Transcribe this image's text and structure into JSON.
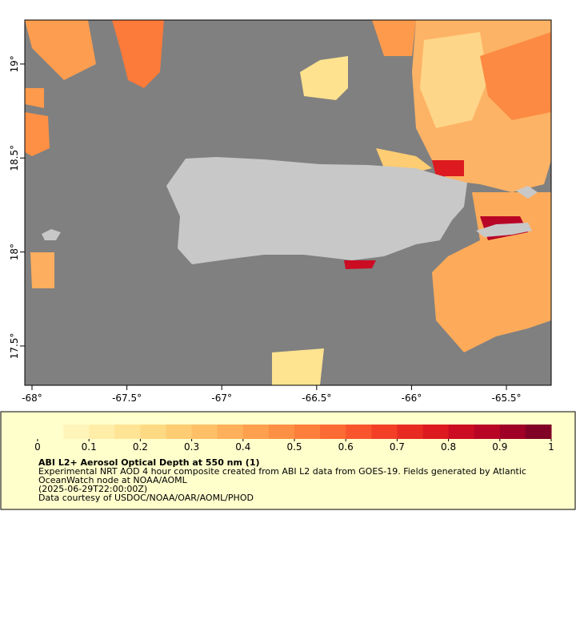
{
  "map": {
    "xlim": [
      -68.038,
      -65.264
    ],
    "ylim": [
      17.291,
      19.234
    ],
    "lon_ticks": [
      {
        "value": -68,
        "label": "-68°"
      },
      {
        "value": -67.5,
        "label": "-67.5°"
      },
      {
        "value": -67,
        "label": "-67°"
      },
      {
        "value": -66.5,
        "label": "-66.5°"
      },
      {
        "value": -66,
        "label": "-66°"
      },
      {
        "value": -65.5,
        "label": "-65.5°"
      }
    ],
    "lat_ticks": [
      {
        "value": 17.5,
        "label": "17.5°"
      },
      {
        "value": 18,
        "label": "18°"
      },
      {
        "value": 18.5,
        "label": "18.5°"
      },
      {
        "value": 19,
        "label": "19°"
      }
    ]
  },
  "colorbar": {
    "lim": [
      0,
      1
    ],
    "ticks": [
      0,
      0.1,
      0.2,
      0.3,
      0.4,
      0.5,
      0.6,
      0.7,
      0.8,
      0.9,
      1
    ],
    "colors": [
      "#ffffcc",
      "#fff5bb",
      "#ffeda8",
      "#ffe495",
      "#fed983",
      "#fecc72",
      "#febf66",
      "#feb05a",
      "#fea04e",
      "#fd9044",
      "#fd7f3b",
      "#fc6b33",
      "#f8552c",
      "#f23f26",
      "#e82b22",
      "#dc1a20",
      "#cc0c22",
      "#b80526",
      "#a00026",
      "#800026"
    ]
  },
  "caption": {
    "title": "ABI L2+ Aerosol Optical Depth at 550 nm (1)",
    "lines": [
      "Experimental NRT AOD 4 hour composite created from ABI L2 data from GOES-19. Fields generated by Atlantic",
      "OceanWatch node at NOAA/AOML",
      "(2025-06-29T22:00:00Z)",
      "Data courtesy of USDOC/NOAA/OAR/AOML/PHOD"
    ]
  }
}
